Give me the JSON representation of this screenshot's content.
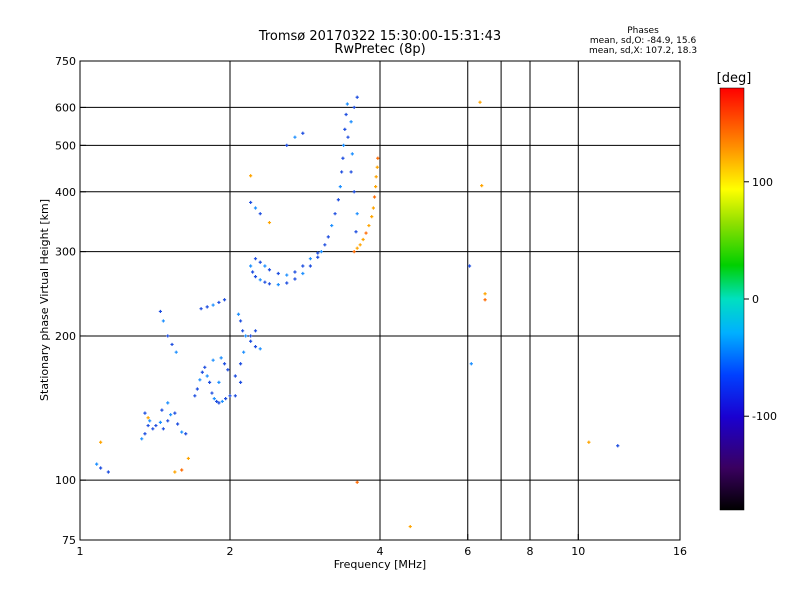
{
  "chart_data": {
    "type": "scatter",
    "title": "Tromsø 20170322 15:30:00-15:31:43",
    "subtitle": "RwPretec (8p)",
    "xlabel": "Frequency [MHz]",
    "ylabel": "Stationary phase Virtual Height [km]",
    "x_scale": "log",
    "y_scale": "log",
    "xlim": [
      1,
      16
    ],
    "ylim": [
      75,
      750
    ],
    "x_ticks": [
      1,
      2,
      4,
      6,
      8,
      10,
      16
    ],
    "y_ticks": [
      75,
      100,
      200,
      300,
      400,
      500,
      600,
      750
    ],
    "x_grid": [
      2,
      4,
      6,
      7,
      8,
      10
    ],
    "y_grid": [
      100,
      200,
      300,
      400,
      500,
      600
    ],
    "grid": true,
    "phase_info": {
      "heading": "Phases",
      "line_o": "mean, sd,O: -84.9, 15.6",
      "line_x": "mean, sd,X: 107.2, 18.3"
    },
    "colorbar": {
      "label": "[deg]",
      "range": [
        -180,
        180
      ],
      "ticks": [
        100,
        0,
        -100
      ],
      "colormap": "rainbow"
    },
    "colors": {
      "o_mode": "#1f4fe0",
      "o_mode_alt": "#1e90ff",
      "x_mode": "#ffa500",
      "x_mode_alt": "#ff6a00"
    },
    "series": [
      {
        "name": "O",
        "points": [
          [
            1.08,
            108
          ],
          [
            1.1,
            106
          ],
          [
            1.14,
            104
          ],
          [
            1.33,
            122
          ],
          [
            1.35,
            125
          ],
          [
            1.37,
            130
          ],
          [
            1.38,
            133
          ],
          [
            1.4,
            128
          ],
          [
            1.42,
            130
          ],
          [
            1.45,
            132
          ],
          [
            1.47,
            128
          ],
          [
            1.5,
            133
          ],
          [
            1.52,
            137
          ],
          [
            1.55,
            138
          ],
          [
            1.57,
            131
          ],
          [
            1.6,
            126
          ],
          [
            1.63,
            125
          ],
          [
            1.46,
            140
          ],
          [
            1.5,
            145
          ],
          [
            1.35,
            138
          ],
          [
            1.45,
            225
          ],
          [
            1.47,
            215
          ],
          [
            1.5,
            200
          ],
          [
            1.53,
            192
          ],
          [
            1.56,
            185
          ],
          [
            1.7,
            150
          ],
          [
            1.72,
            155
          ],
          [
            1.74,
            162
          ],
          [
            1.76,
            168
          ],
          [
            1.78,
            172
          ],
          [
            1.8,
            165
          ],
          [
            1.82,
            160
          ],
          [
            1.84,
            152
          ],
          [
            1.86,
            148
          ],
          [
            1.88,
            146
          ],
          [
            1.9,
            145
          ],
          [
            1.93,
            146
          ],
          [
            1.96,
            148
          ],
          [
            2.0,
            150
          ],
          [
            1.92,
            180
          ],
          [
            1.95,
            175
          ],
          [
            1.98,
            170
          ],
          [
            1.9,
            160
          ],
          [
            2.05,
            165
          ],
          [
            2.1,
            175
          ],
          [
            2.13,
            185
          ],
          [
            2.1,
            160
          ],
          [
            2.05,
            150
          ],
          [
            1.85,
            178
          ],
          [
            1.75,
            228
          ],
          [
            1.8,
            230
          ],
          [
            1.85,
            232
          ],
          [
            1.9,
            235
          ],
          [
            1.95,
            238
          ],
          [
            2.08,
            222
          ],
          [
            2.1,
            215
          ],
          [
            2.12,
            205
          ],
          [
            2.15,
            200
          ],
          [
            2.2,
            195
          ],
          [
            2.25,
            190
          ],
          [
            2.3,
            188
          ],
          [
            2.25,
            205
          ],
          [
            2.2,
            200
          ],
          [
            2.2,
            280
          ],
          [
            2.22,
            272
          ],
          [
            2.25,
            266
          ],
          [
            2.3,
            262
          ],
          [
            2.35,
            259
          ],
          [
            2.4,
            257
          ],
          [
            2.5,
            256
          ],
          [
            2.6,
            258
          ],
          [
            2.7,
            263
          ],
          [
            2.8,
            270
          ],
          [
            2.9,
            280
          ],
          [
            3.0,
            292
          ],
          [
            3.05,
            300
          ],
          [
            3.1,
            310
          ],
          [
            3.15,
            322
          ],
          [
            3.2,
            340
          ],
          [
            3.25,
            360
          ],
          [
            3.3,
            385
          ],
          [
            3.33,
            410
          ],
          [
            3.35,
            440
          ],
          [
            3.37,
            470
          ],
          [
            3.38,
            500
          ],
          [
            3.4,
            540
          ],
          [
            3.42,
            580
          ],
          [
            3.44,
            610
          ],
          [
            2.25,
            290
          ],
          [
            2.3,
            285
          ],
          [
            2.35,
            280
          ],
          [
            2.4,
            275
          ],
          [
            2.5,
            270
          ],
          [
            2.6,
            268
          ],
          [
            2.7,
            272
          ],
          [
            2.8,
            280
          ],
          [
            2.9,
            290
          ],
          [
            3.0,
            298
          ],
          [
            3.45,
            520
          ],
          [
            3.5,
            560
          ],
          [
            3.55,
            600
          ],
          [
            3.6,
            630
          ],
          [
            3.52,
            480
          ],
          [
            3.5,
            440
          ],
          [
            3.55,
            400
          ],
          [
            3.6,
            360
          ],
          [
            3.58,
            330
          ],
          [
            2.2,
            380
          ],
          [
            2.25,
            370
          ],
          [
            2.3,
            360
          ],
          [
            2.6,
            500
          ],
          [
            2.7,
            520
          ],
          [
            2.8,
            530
          ],
          [
            6.05,
            280
          ],
          [
            6.1,
            175
          ],
          [
            12.0,
            118
          ]
        ]
      },
      {
        "name": "X",
        "points": [
          [
            3.55,
            300
          ],
          [
            3.6,
            305
          ],
          [
            3.65,
            310
          ],
          [
            3.7,
            318
          ],
          [
            3.75,
            328
          ],
          [
            3.8,
            340
          ],
          [
            3.85,
            355
          ],
          [
            3.88,
            370
          ],
          [
            3.9,
            390
          ],
          [
            3.92,
            410
          ],
          [
            3.93,
            430
          ],
          [
            3.95,
            450
          ],
          [
            3.96,
            470
          ],
          [
            1.1,
            120
          ],
          [
            1.37,
            135
          ],
          [
            1.55,
            104
          ],
          [
            1.6,
            105
          ],
          [
            1.65,
            111
          ],
          [
            2.2,
            432
          ],
          [
            2.4,
            345
          ],
          [
            3.6,
            99
          ],
          [
            4.6,
            80
          ],
          [
            6.4,
            412
          ],
          [
            6.5,
            245
          ],
          [
            6.5,
            238
          ],
          [
            6.35,
            615
          ],
          [
            10.5,
            120
          ]
        ]
      }
    ]
  }
}
